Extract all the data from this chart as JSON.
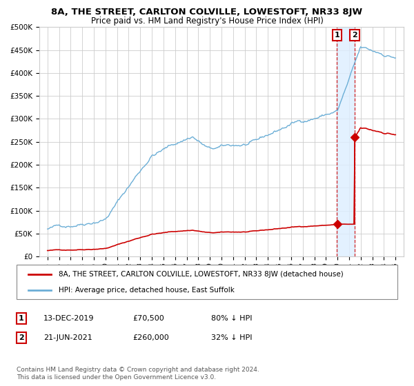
{
  "title": "8A, THE STREET, CARLTON COLVILLE, LOWESTOFT, NR33 8JW",
  "subtitle": "Price paid vs. HM Land Registry's House Price Index (HPI)",
  "ylim": [
    0,
    500000
  ],
  "yticks": [
    0,
    50000,
    100000,
    150000,
    200000,
    250000,
    300000,
    350000,
    400000,
    450000,
    500000
  ],
  "ytick_labels": [
    "£0",
    "£50K",
    "£100K",
    "£150K",
    "£200K",
    "£250K",
    "£300K",
    "£350K",
    "£400K",
    "£450K",
    "£500K"
  ],
  "bg_color": "#ffffff",
  "plot_bg_color": "#ffffff",
  "grid_color": "#cccccc",
  "hpi_color": "#6baed6",
  "price_color": "#cc0000",
  "marker_color": "#cc0000",
  "transaction1_date": 2019.96,
  "transaction1_price": 70500,
  "transaction1_label": "1",
  "transaction2_date": 2021.47,
  "transaction2_price": 260000,
  "transaction2_label": "2",
  "shade_color": "#ddeeff",
  "legend_property_label": "8A, THE STREET, CARLTON COLVILLE, LOWESTOFT, NR33 8JW (detached house)",
  "legend_hpi_label": "HPI: Average price, detached house, East Suffolk",
  "footnote1_num": "1",
  "footnote1_date": "13-DEC-2019",
  "footnote1_price": "£70,500",
  "footnote1_hpi": "80% ↓ HPI",
  "footnote2_num": "2",
  "footnote2_date": "21-JUN-2021",
  "footnote2_price": "£260,000",
  "footnote2_hpi": "32% ↓ HPI",
  "copyright": "Contains HM Land Registry data © Crown copyright and database right 2024.\nThis data is licensed under the Open Government Licence v3.0.",
  "hpi_seed": 42,
  "price_seed": 7
}
